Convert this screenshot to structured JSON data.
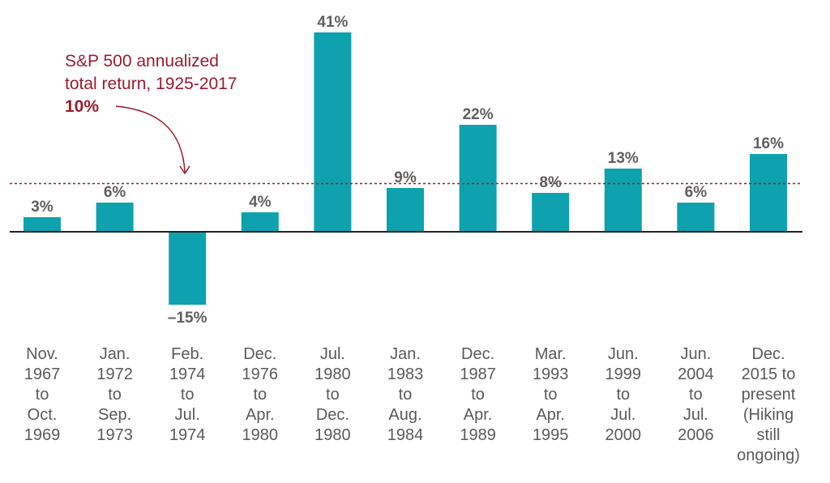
{
  "chart_data": {
    "type": "bar",
    "title": "",
    "xlabel": "",
    "ylabel": "",
    "ylim": [
      -15,
      41
    ],
    "categories": [
      [
        "Nov.",
        "1967",
        "to",
        "Oct.",
        "1969"
      ],
      [
        "Jan.",
        "1972",
        "to",
        "Sep.",
        "1973"
      ],
      [
        "Feb.",
        "1974",
        "to",
        "Jul.",
        "1974"
      ],
      [
        "Dec.",
        "1976",
        "to",
        "Apr.",
        "1980"
      ],
      [
        "Jul.",
        "1980",
        "to",
        "Dec.",
        "1980"
      ],
      [
        "Jan.",
        "1983",
        "to",
        "Aug.",
        "1984"
      ],
      [
        "Dec.",
        "1987",
        "to",
        "Apr.",
        "1989"
      ],
      [
        "Mar.",
        "1993",
        "to",
        "Apr.",
        "1995"
      ],
      [
        "Jun.",
        "1999",
        "to",
        "Jul.",
        "2000"
      ],
      [
        "Jun.",
        "2004",
        "to",
        "Jul.",
        "2006"
      ],
      [
        "Dec.",
        "2015 to",
        "present",
        "(Hiking",
        "still",
        "ongoing)"
      ]
    ],
    "values": [
      3,
      6,
      -15,
      4,
      41,
      9,
      22,
      8,
      13,
      6,
      16
    ],
    "value_labels": [
      "3%",
      "6%",
      "–15%",
      "4%",
      "41%",
      "9%",
      "22%",
      "8%",
      "13%",
      "6%",
      "16%"
    ],
    "reference_line": {
      "value": 10,
      "text_lines": [
        "S&P 500 annualized",
        "total return, 1925-2017"
      ],
      "value_label": "10%"
    },
    "grid": false,
    "legend": "none"
  },
  "colors": {
    "bar": "#0ea1ae",
    "axis": "#222222",
    "reference": "#9b1b2e",
    "value_text": "#5f5f5f",
    "category_text": "#5a5a5a"
  }
}
